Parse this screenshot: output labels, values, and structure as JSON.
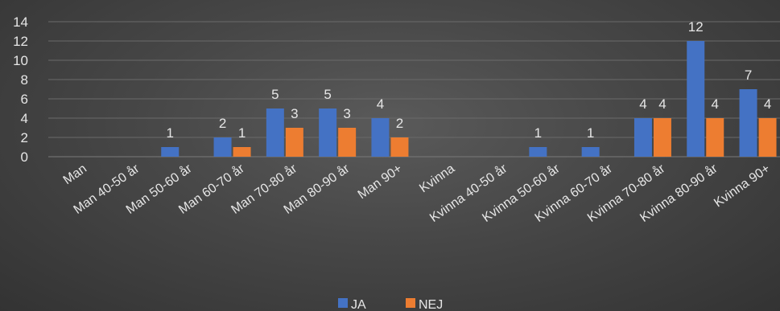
{
  "chart_data": {
    "type": "bar",
    "title": "",
    "xlabel": "",
    "ylabel": "",
    "categories": [
      "Man",
      "Man 40-50 år",
      "Man 50-60 år",
      "Man 60-70 år",
      "Man 70-80 år",
      "Man 80-90 år",
      "Man 90+",
      "Kvinna",
      "Kvinna 40-50 år",
      "Kvinna 50-60 år",
      "Kvinna 60-70 år",
      "Kvinna 70-80 år",
      "Kvinna 80-90 år",
      "Kvinna 90+"
    ],
    "series": [
      {
        "name": "JA",
        "color": "#4472c4",
        "values": [
          null,
          null,
          1,
          2,
          5,
          5,
          4,
          null,
          null,
          1,
          1,
          4,
          12,
          7
        ]
      },
      {
        "name": "NEJ",
        "color": "#ed7d31",
        "values": [
          null,
          null,
          null,
          1,
          3,
          3,
          2,
          null,
          null,
          null,
          null,
          4,
          4,
          4
        ]
      }
    ],
    "ylim": [
      0,
      14
    ],
    "yticks": [
      0,
      2,
      4,
      6,
      8,
      10,
      12,
      14
    ],
    "grid": true,
    "legend_position": "bottom",
    "colors": {
      "label": "#e6e6e6",
      "grid": "#6a6a6a"
    }
  }
}
